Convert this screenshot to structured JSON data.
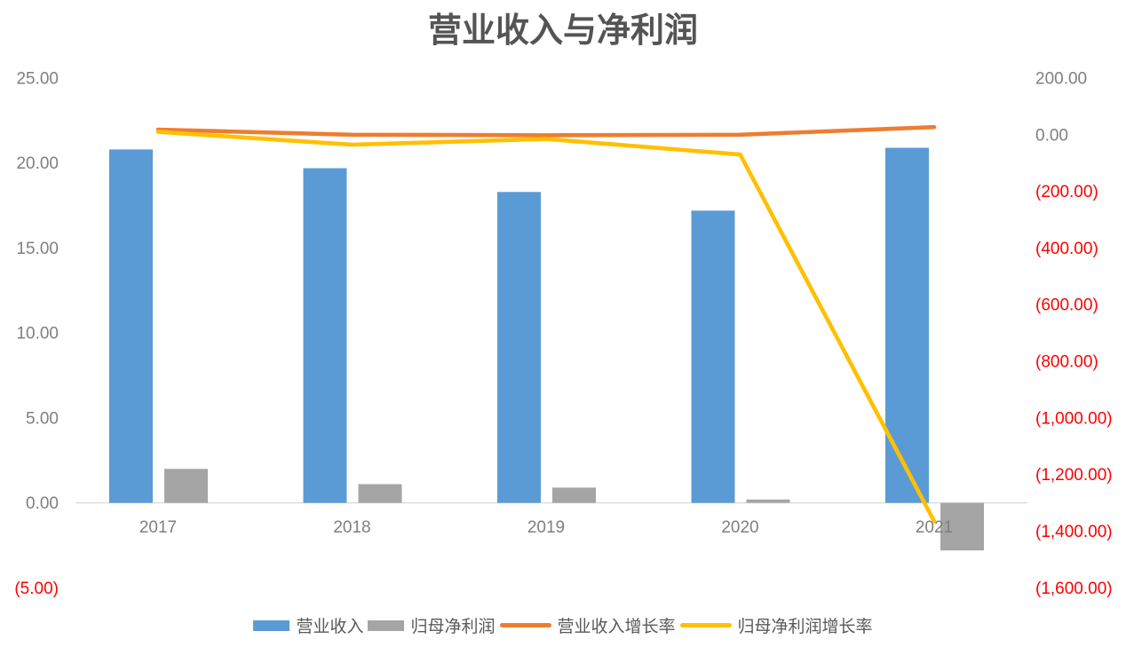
{
  "chart_data": {
    "type": "combo",
    "title": "营业收入与净利润",
    "categories": [
      "2017",
      "2018",
      "2019",
      "2020",
      "2021"
    ],
    "series": [
      {
        "id": "revenue",
        "name": "营业收入",
        "type": "bar",
        "axis": "left",
        "color": "#5B9BD5",
        "values": [
          20.8,
          19.7,
          18.3,
          17.2,
          20.9
        ]
      },
      {
        "id": "net-profit",
        "name": "归母净利润",
        "type": "bar",
        "axis": "left",
        "color": "#A5A5A5",
        "values": [
          2.0,
          1.1,
          0.9,
          0.2,
          -2.8
        ]
      },
      {
        "id": "revenue-growth",
        "name": "营业收入增长率",
        "type": "line",
        "axis": "right",
        "color": "#ED7D31",
        "values": [
          18,
          0,
          -2,
          0,
          27
        ]
      },
      {
        "id": "profit-growth",
        "name": "归母净利润增长率",
        "type": "line",
        "axis": "right",
        "color": "#FFC000",
        "values": [
          10,
          -35,
          -15,
          -70,
          -1365
        ]
      }
    ],
    "left_axis": {
      "min": -5,
      "max": 25,
      "labels": [
        "25.00",
        "20.00",
        "15.00",
        "10.00",
        "5.00",
        "0.00",
        "(5.00)"
      ]
    },
    "right_axis": {
      "min": -1600,
      "max": 200,
      "labels": [
        "200.00",
        "0.00",
        "(200.00)",
        "(400.00)",
        "(600.00)",
        "(800.00)",
        "(1,000.00)",
        "(1,200.00)",
        "(1,400.00)",
        "(1,600.00)"
      ]
    },
    "legend_position": "bottom",
    "grid": false,
    "colors": {
      "label": "#7F7F7F",
      "negative": "#FF0000",
      "axis_line": "#D9D9D9",
      "title": "#545454"
    }
  }
}
